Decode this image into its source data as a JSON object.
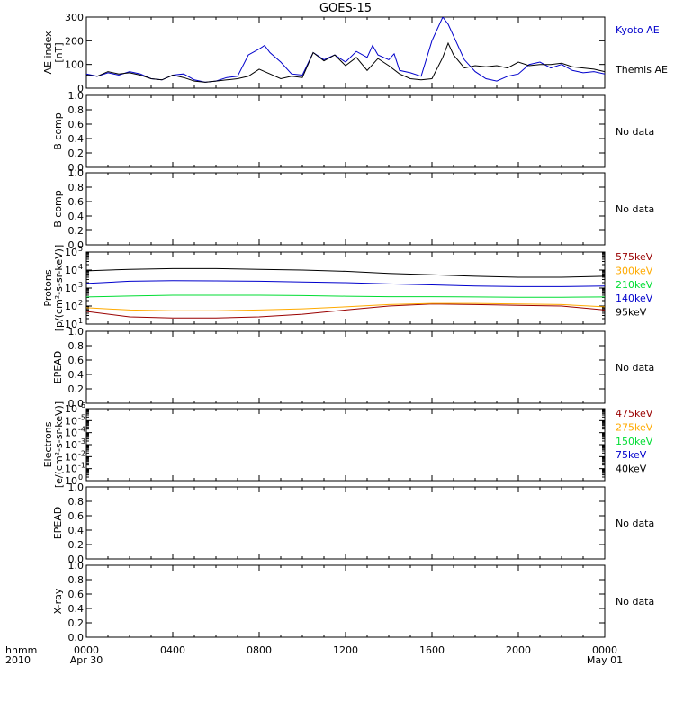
{
  "title": "GOES-15",
  "colors": {
    "black": "#000000",
    "blue": "#0000cc",
    "green": "#00dd33",
    "orange": "#ffaa00",
    "darkred": "#990000"
  },
  "x_axis": {
    "ticks": [
      "0000",
      "0400",
      "0800",
      "1200",
      "1600",
      "2000",
      "0000"
    ],
    "tick_hours": [
      0,
      4,
      8,
      12,
      16,
      20,
      24
    ],
    "sublabel_left": "Apr 30",
    "sublabel_right": "May 01",
    "corner_label_1": "hhmm",
    "corner_label_2": "2010"
  },
  "chart_data": [
    {
      "type": "line",
      "ylabel_line1": "AE index",
      "ylabel_line2": "[nT]",
      "ylim": [
        0,
        300
      ],
      "yticks": [
        "0",
        "100",
        "200",
        "300"
      ],
      "x_unit": "hours since Apr 30 0000",
      "series": [
        {
          "name": "Kyoto AE",
          "color": "blue",
          "x": [
            0,
            0.5,
            1,
            1.5,
            2,
            2.5,
            3,
            3.5,
            4,
            4.5,
            5,
            5.5,
            6,
            6.5,
            7,
            7.5,
            8,
            8.25,
            8.5,
            9,
            9.5,
            10,
            10.5,
            11,
            11.5,
            12,
            12.5,
            13,
            13.25,
            13.5,
            14,
            14.25,
            14.5,
            15,
            15.5,
            16,
            16.5,
            16.75,
            17,
            17.5,
            18,
            18.5,
            19,
            19.5,
            20,
            20.5,
            21,
            21.5,
            22,
            22.5,
            23,
            23.5,
            24
          ],
          "y": [
            60,
            50,
            65,
            55,
            70,
            60,
            40,
            35,
            55,
            60,
            35,
            25,
            30,
            45,
            50,
            140,
            165,
            180,
            150,
            110,
            60,
            55,
            150,
            120,
            140,
            110,
            155,
            130,
            180,
            140,
            120,
            145,
            75,
            65,
            50,
            200,
            300,
            270,
            220,
            120,
            70,
            40,
            30,
            50,
            60,
            100,
            110,
            85,
            100,
            75,
            65,
            70,
            60
          ]
        },
        {
          "name": "Themis AE",
          "color": "black",
          "x": [
            0,
            0.5,
            1,
            1.5,
            2,
            2.5,
            3,
            3.5,
            4,
            4.5,
            5,
            5.5,
            6,
            6.5,
            7,
            7.5,
            8,
            8.5,
            9,
            9.5,
            10,
            10.5,
            11,
            11.5,
            12,
            12.5,
            13,
            13.5,
            14,
            14.5,
            15,
            15.5,
            16,
            16.5,
            16.75,
            17,
            17.5,
            18,
            18.5,
            19,
            19.5,
            20,
            20.5,
            21,
            21.5,
            22,
            22.5,
            23,
            23.5,
            24
          ],
          "y": [
            55,
            50,
            70,
            60,
            65,
            55,
            40,
            35,
            55,
            45,
            30,
            25,
            30,
            35,
            40,
            50,
            80,
            60,
            40,
            50,
            45,
            150,
            115,
            140,
            95,
            130,
            75,
            125,
            95,
            60,
            40,
            35,
            40,
            130,
            190,
            140,
            85,
            95,
            90,
            95,
            85,
            110,
            95,
            100,
            100,
            105,
            90,
            85,
            80,
            70
          ]
        }
      ]
    },
    {
      "type": "line",
      "ylabel": "B comp",
      "ylim": [
        0,
        1
      ],
      "yticks": [
        "0.0",
        "0.2",
        "0.4",
        "0.6",
        "0.8",
        "1.0"
      ],
      "series": [],
      "note": "No data"
    },
    {
      "type": "line",
      "ylabel": "B comp",
      "ylim": [
        0,
        1
      ],
      "yticks": [
        "0.0",
        "0.2",
        "0.4",
        "0.6",
        "0.8",
        "1.0"
      ],
      "series": [],
      "note": "No data"
    },
    {
      "type": "line",
      "ylabel_line1": "Protons",
      "ylabel_line2": "[p/(cm²-s-sr-keV)]",
      "yscale": "log",
      "ylim": [
        10,
        100000
      ],
      "yticks": [
        {
          "base": "10",
          "exp": "1"
        },
        {
          "base": "10",
          "exp": "2"
        },
        {
          "base": "10",
          "exp": "3"
        },
        {
          "base": "10",
          "exp": "4"
        },
        {
          "base": "10",
          "exp": "5"
        }
      ],
      "x_unit": "hours since Apr 30 0000",
      "series": [
        {
          "name": "575keV",
          "color": "darkred",
          "x": [
            0,
            2,
            4,
            6,
            8,
            10,
            12,
            14,
            16,
            18,
            20,
            22,
            24
          ],
          "y": [
            50,
            25,
            22,
            22,
            25,
            35,
            60,
            100,
            130,
            120,
            110,
            100,
            60
          ]
        },
        {
          "name": "300keV",
          "color": "orange",
          "x": [
            0,
            2,
            4,
            6,
            8,
            10,
            12,
            14,
            16,
            18,
            20,
            22,
            24
          ],
          "y": [
            80,
            60,
            55,
            55,
            60,
            70,
            90,
            120,
            140,
            140,
            130,
            120,
            90
          ]
        },
        {
          "name": "210keV",
          "color": "green",
          "x": [
            0,
            2,
            4,
            6,
            8,
            10,
            12,
            14,
            16,
            18,
            20,
            22,
            24
          ],
          "y": [
            320,
            360,
            400,
            400,
            400,
            380,
            350,
            330,
            330,
            320,
            310,
            310,
            320
          ]
        },
        {
          "name": "140keV",
          "color": "blue",
          "x": [
            0,
            2,
            4,
            6,
            8,
            10,
            12,
            14,
            16,
            18,
            20,
            22,
            24
          ],
          "y": [
            1800,
            2400,
            2600,
            2500,
            2400,
            2200,
            2000,
            1700,
            1500,
            1300,
            1200,
            1200,
            1300
          ]
        },
        {
          "name": "95keV",
          "color": "black",
          "x": [
            0,
            2,
            4,
            6,
            8,
            10,
            12,
            14,
            16,
            18,
            20,
            22,
            24
          ],
          "y": [
            9000,
            11000,
            12000,
            12000,
            11000,
            10000,
            8500,
            6500,
            5500,
            4500,
            4000,
            4000,
            4500
          ]
        }
      ]
    },
    {
      "type": "line",
      "ylabel": "EPEAD",
      "ylim": [
        0,
        1
      ],
      "yticks": [
        "0.0",
        "0.2",
        "0.4",
        "0.6",
        "0.8",
        "1.0"
      ],
      "series": [],
      "note": "No data"
    },
    {
      "type": "line",
      "ylabel_line1": "Electrons",
      "ylabel_line2": "[e/(cm²-s-sr-keV)]",
      "yscale": "log",
      "ylim": [
        1e-06,
        1
      ],
      "yticks": [
        {
          "base": "10",
          "exp": "0"
        },
        {
          "base": "10",
          "exp": "-1"
        },
        {
          "base": "10",
          "exp": "-2"
        },
        {
          "base": "10",
          "exp": "-3"
        },
        {
          "base": "10",
          "exp": "-4"
        },
        {
          "base": "10",
          "exp": "-5"
        },
        {
          "base": "10",
          "exp": "-6"
        }
      ],
      "series": [
        {
          "name": "475keV",
          "color": "darkred",
          "x": [],
          "y": []
        },
        {
          "name": "275keV",
          "color": "orange",
          "x": [],
          "y": []
        },
        {
          "name": "150keV",
          "color": "green",
          "x": [],
          "y": []
        },
        {
          "name": "75keV",
          "color": "blue",
          "x": [],
          "y": []
        },
        {
          "name": "40keV",
          "color": "black",
          "x": [],
          "y": []
        }
      ]
    },
    {
      "type": "line",
      "ylabel": "EPEAD",
      "ylim": [
        0,
        1
      ],
      "yticks": [
        "0.0",
        "0.2",
        "0.4",
        "0.6",
        "0.8",
        "1.0"
      ],
      "series": [],
      "note": "No data"
    },
    {
      "type": "line",
      "ylabel": "X-ray",
      "ylim": [
        0,
        1
      ],
      "yticks": [
        "0.0",
        "0.2",
        "0.4",
        "0.6",
        "0.8",
        "1.0"
      ],
      "series": [],
      "note": "No data"
    }
  ]
}
